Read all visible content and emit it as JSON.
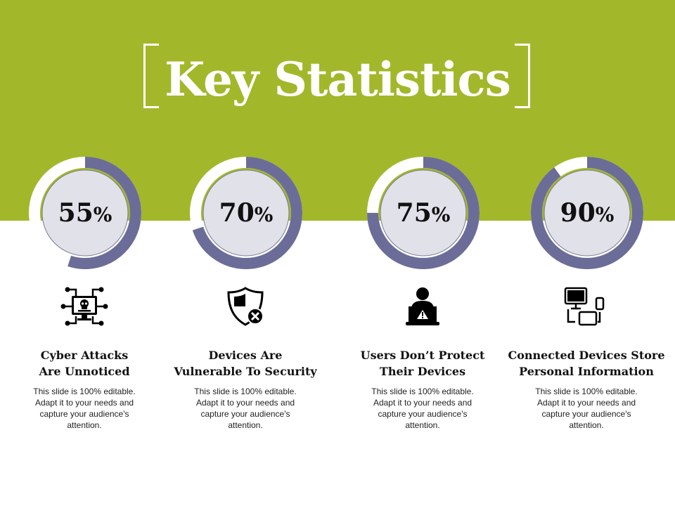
{
  "title": "Key Statistics",
  "colors": {
    "band": "#a2b82a",
    "ring": "#6b6d98",
    "ring_track": "#ffffff",
    "inner_fill": "#e1e1ea"
  },
  "stats": [
    {
      "value": 55,
      "number": "55",
      "unit": "%",
      "icon": "cyber-attack-monitor-skull-icon",
      "heading": "Cyber Attacks\nAre Unnoticed",
      "description": "This slide is 100% editable. Adapt it to your needs and capture your audience's attention."
    },
    {
      "value": 70,
      "number": "70",
      "unit": "%",
      "icon": "shield-x-icon",
      "heading": "Devices Are\nVulnerable To Security",
      "description": "This slide is 100% editable. Adapt it to your needs and capture your audience's attention."
    },
    {
      "value": 75,
      "number": "75",
      "unit": "%",
      "icon": "user-laptop-warning-icon",
      "heading": "Users Don’t Protect\nTheir Devices",
      "description": "This slide is 100% editable. Adapt it to your needs and capture your audience's attention."
    },
    {
      "value": 90,
      "number": "90",
      "unit": "%",
      "icon": "connected-devices-icon",
      "heading": "Connected Devices Store\nPersonal Information",
      "description": "This slide is 100% editable. Adapt it to your needs and capture your audience's attention."
    }
  ]
}
